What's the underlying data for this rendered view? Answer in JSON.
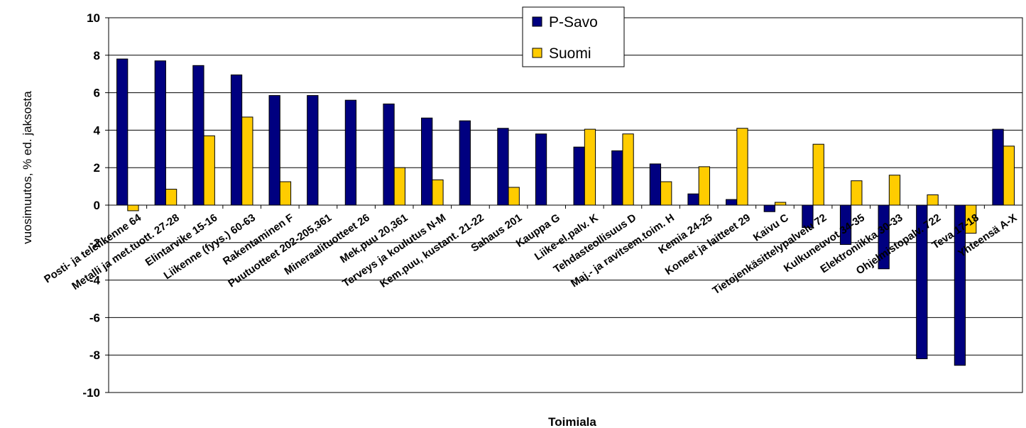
{
  "chart_data": {
    "type": "bar",
    "title": "",
    "xlabel": "Toimiala",
    "ylabel": "vuosimuutos, % ed. jaksosta",
    "ylim": [
      -10,
      10
    ],
    "yticks": [
      10,
      8,
      6,
      4,
      2,
      0,
      -2,
      -4,
      -6,
      -8,
      -10
    ],
    "grid": true,
    "legend_position": "top-center",
    "categories": [
      "Posti- ja telelikenne 64",
      "Metalli ja met.tuott. 27-28",
      "Elintarvike 15-16",
      "Liikenne (fyys.) 60-63",
      "Rakentaminen F",
      "Puutuotteet 202-205,361",
      "Mineraalituotteet 26",
      "Mek.puu 20,361",
      "Terveys ja koulutus N-M",
      "Kem.puu, kustant. 21-22",
      "Sahaus 201",
      "Kauppa G",
      "Liike-el.palv. K",
      "Tehdasteollisuus D",
      "Maj.- ja ravitsem.toim. H",
      "Kemia 24-25",
      "Koneet ja laitteet 29",
      "Kaivu C",
      "Tietojenkäsittelypalvelu 72",
      "Kulkuneuvot 34-35",
      "Elektroniikka 30-33",
      "Ohjelmistopalv. 722",
      "Teva 17-18",
      "Yhteensä A-X"
    ],
    "series": [
      {
        "name": "P-Savo",
        "color": "#000080",
        "values": [
          7.8,
          7.7,
          7.45,
          6.95,
          5.85,
          5.85,
          5.6,
          5.4,
          4.65,
          4.5,
          4.1,
          3.8,
          3.1,
          2.9,
          2.2,
          0.6,
          0.3,
          -0.35,
          -1.2,
          -2.1,
          -3.4,
          -8.2,
          -8.55,
          4.05
        ]
      },
      {
        "name": "Suomi",
        "color": "#ffcc00",
        "values": [
          -0.3,
          0.85,
          3.7,
          4.7,
          1.25,
          null,
          null,
          2.0,
          1.35,
          null,
          0.95,
          null,
          4.05,
          3.8,
          1.25,
          2.05,
          4.1,
          0.15,
          3.25,
          1.3,
          1.6,
          0.55,
          -1.5,
          3.15
        ]
      }
    ]
  }
}
